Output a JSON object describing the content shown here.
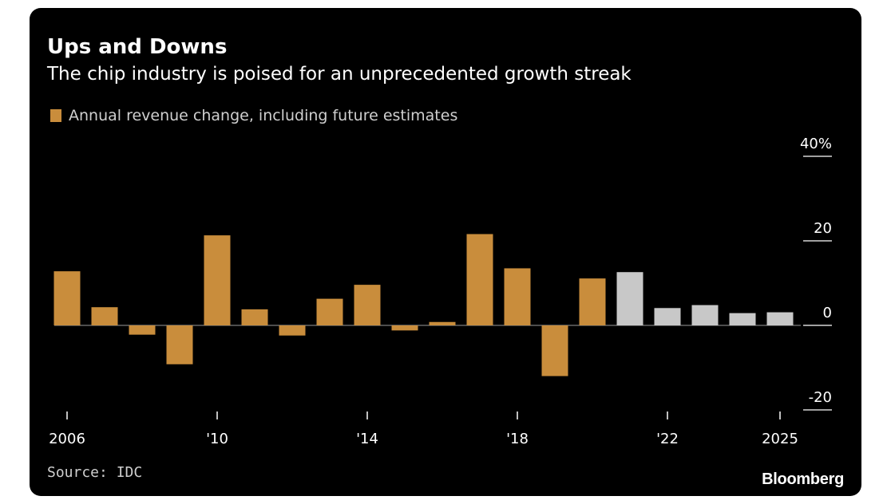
{
  "header": {
    "title": "Ups and Downs",
    "subtitle": "The chip industry is poised for an unprecedented growth streak",
    "legend_label": "Annual revenue change, including future estimates"
  },
  "footer": {
    "source": "Source: IDC",
    "brand": "Bloomberg"
  },
  "colors": {
    "actual": "#c98d3c",
    "estimate": "#c8c8c8",
    "background": "#000000",
    "text": "#ffffff"
  },
  "chart_data": {
    "type": "bar",
    "title": "Ups and Downs",
    "subtitle": "The chip industry is poised for an unprecedented growth streak",
    "xlabel": "",
    "ylabel": "",
    "ylim": [
      -20,
      40
    ],
    "y_ticks": [
      {
        "value": 40,
        "label": "40%"
      },
      {
        "value": 20,
        "label": "20"
      },
      {
        "value": 0,
        "label": "0"
      },
      {
        "value": -20,
        "label": "-20"
      }
    ],
    "x_ticks": [
      {
        "year": 2006,
        "label": "2006"
      },
      {
        "year": 2010,
        "label": "'10"
      },
      {
        "year": 2014,
        "label": "'14"
      },
      {
        "year": 2018,
        "label": "'18"
      },
      {
        "year": 2022,
        "label": "'22"
      },
      {
        "year": 2025,
        "label": "2025"
      }
    ],
    "series": [
      {
        "name": "Annual revenue change",
        "color": "#c98d3c",
        "years": [
          2006,
          2007,
          2008,
          2009,
          2010,
          2011,
          2012,
          2013,
          2014,
          2015,
          2016,
          2017,
          2018,
          2019,
          2020
        ],
        "values": [
          12.8,
          4.3,
          -2.2,
          -9.2,
          21.3,
          3.8,
          -2.4,
          6.3,
          9.6,
          -1.2,
          0.8,
          21.6,
          13.5,
          -12,
          11.1
        ]
      },
      {
        "name": "Future estimates",
        "color": "#c8c8c8",
        "years": [
          2021,
          2022,
          2023,
          2024,
          2025
        ],
        "values": [
          12.6,
          4.1,
          4.8,
          2.9,
          3.1
        ]
      }
    ],
    "legend": [
      "Annual revenue change, including future estimates"
    ]
  }
}
